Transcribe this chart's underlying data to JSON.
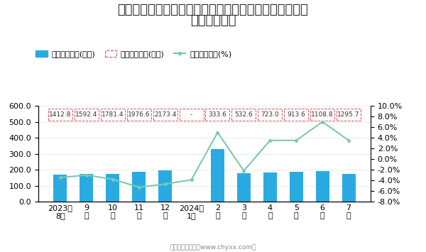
{
  "title_line1": "近一年全国农副食品加工业出口货值当期值、累计值及同",
  "title_line2": "比增长统计图",
  "categories": [
    "2023年\n8月",
    "9\n月",
    "10\n月",
    "11\n月",
    "12\n月",
    "2024年\n1月",
    "2\n月",
    "3\n月",
    "4\n月",
    "5\n月",
    "6\n月",
    "7\n月"
  ],
  "bar_values": [
    170,
    175,
    172,
    185,
    197,
    null,
    330,
    178,
    182,
    185,
    191,
    173
  ],
  "cumulative_values": [
    "1412.8",
    "1592.4",
    "1781.4",
    "1976.6",
    "2173.4",
    "-",
    "333.6",
    "532.6",
    "723.0",
    "913.6",
    "1108.8",
    "1295.7"
  ],
  "growth_values": [
    -3.5,
    -3.0,
    -3.8,
    -5.3,
    -4.7,
    -3.9,
    5.0,
    -2.2,
    3.5,
    3.5,
    7.0,
    3.5
  ],
  "bar_color": "#29ABE2",
  "line_color": "#7BC8B2",
  "box_edge_color": "#E05050",
  "ylim_left": [
    0.0,
    600.0
  ],
  "ylim_right": [
    -8.0,
    10.0
  ],
  "yticks_left": [
    0.0,
    100.0,
    200.0,
    300.0,
    400.0,
    500.0,
    600.0
  ],
  "yticks_right": [
    -8.0,
    -6.0,
    -4.0,
    -2.0,
    0.0,
    2.0,
    4.0,
    6.0,
    8.0,
    10.0
  ],
  "legend_bar_label": "当月出口货值(亿元)",
  "legend_cumulative_label": "累计出口货值(亿元)",
  "legend_line_label": "当月同比增长(%)",
  "footer": "制图：智研咨询（www.chyxx.com）",
  "bg_color": "#FFFFFF",
  "title_fontsize": 13,
  "axis_fontsize": 8,
  "cumbox_fontsize": 6.5,
  "legend_fontsize": 8
}
